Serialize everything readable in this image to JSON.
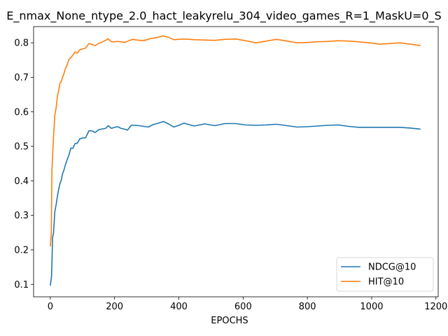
{
  "chart_data": {
    "type": "line",
    "title": "E_nmax_None_ntype_2.0_hact_leakyrelu_304_video_games_R=1_MaskU=0_S",
    "xlabel": "EPOCHS",
    "ylabel": "",
    "xlim": [
      -52,
      1207
    ],
    "ylim": [
      0.064,
      0.847
    ],
    "xticks": [
      0,
      200,
      400,
      600,
      800,
      1000,
      1200
    ],
    "yticks": [
      0.1,
      0.2,
      0.3,
      0.4,
      0.5,
      0.6,
      0.7,
      0.8
    ],
    "xtick_labels": [
      "0",
      "200",
      "400",
      "600",
      "800",
      "1000",
      "1200"
    ],
    "ytick_labels": [
      "0.1",
      "0.2",
      "0.3",
      "0.4",
      "0.5",
      "0.6",
      "0.7",
      "0.8"
    ],
    "grid": false,
    "legend_position": "bottom-right",
    "series": [
      {
        "name": "NDCG@10",
        "color": "#1f77b4",
        "x": [
          0,
          4,
          7,
          10,
          14,
          18,
          22,
          26,
          30,
          34,
          38,
          42,
          47,
          52,
          58,
          64,
          70,
          77,
          84,
          92,
          100,
          110,
          120,
          130,
          140,
          150,
          160,
          172,
          180,
          190,
          200,
          210,
          220,
          230,
          240,
          252,
          264,
          276,
          290,
          305,
          320,
          336,
          352,
          368,
          384,
          400,
          416,
          448,
          480,
          512,
          544,
          576,
          608,
          640,
          672,
          704,
          736,
          768,
          800,
          832,
          864,
          896,
          928,
          960,
          992,
          1024,
          1056,
          1088,
          1120,
          1152
        ],
        "y": [
          0.096,
          0.125,
          0.235,
          0.25,
          0.31,
          0.33,
          0.355,
          0.375,
          0.392,
          0.402,
          0.42,
          0.43,
          0.447,
          0.46,
          0.475,
          0.495,
          0.494,
          0.508,
          0.509,
          0.522,
          0.524,
          0.525,
          0.545,
          0.545,
          0.54,
          0.548,
          0.55,
          0.552,
          0.56,
          0.552,
          0.555,
          0.557,
          0.552,
          0.55,
          0.547,
          0.561,
          0.561,
          0.56,
          0.558,
          0.556,
          0.563,
          0.567,
          0.572,
          0.565,
          0.556,
          0.561,
          0.567,
          0.559,
          0.565,
          0.56,
          0.566,
          0.566,
          0.562,
          0.561,
          0.562,
          0.564,
          0.56,
          0.556,
          0.557,
          0.559,
          0.561,
          0.562,
          0.558,
          0.555,
          0.555,
          0.555,
          0.555,
          0.555,
          0.553,
          0.55
        ]
      },
      {
        "name": "HIT@10",
        "color": "#ff7f0e",
        "x": [
          0,
          3,
          5,
          7,
          10,
          14,
          18,
          22,
          26,
          30,
          34,
          38,
          42,
          47,
          52,
          58,
          64,
          70,
          77,
          84,
          92,
          100,
          110,
          120,
          130,
          140,
          150,
          160,
          170,
          180,
          190,
          200,
          210,
          220,
          232,
          244,
          256,
          270,
          290,
          310,
          330,
          352,
          368,
          384,
          416,
          448,
          480,
          512,
          544,
          576,
          608,
          640,
          672,
          704,
          736,
          768,
          800,
          832,
          864,
          896,
          928,
          960,
          992,
          1024,
          1056,
          1088,
          1120,
          1152
        ],
        "y": [
          0.21,
          0.25,
          0.43,
          0.47,
          0.53,
          0.59,
          0.61,
          0.645,
          0.66,
          0.683,
          0.688,
          0.7,
          0.71,
          0.725,
          0.735,
          0.752,
          0.757,
          0.764,
          0.774,
          0.77,
          0.78,
          0.782,
          0.785,
          0.798,
          0.795,
          0.792,
          0.798,
          0.802,
          0.806,
          0.812,
          0.803,
          0.803,
          0.804,
          0.803,
          0.801,
          0.806,
          0.81,
          0.808,
          0.806,
          0.812,
          0.815,
          0.82,
          0.816,
          0.809,
          0.811,
          0.809,
          0.808,
          0.807,
          0.81,
          0.811,
          0.806,
          0.8,
          0.805,
          0.81,
          0.805,
          0.8,
          0.801,
          0.803,
          0.804,
          0.806,
          0.805,
          0.803,
          0.8,
          0.796,
          0.798,
          0.8,
          0.796,
          0.792
        ]
      }
    ]
  }
}
